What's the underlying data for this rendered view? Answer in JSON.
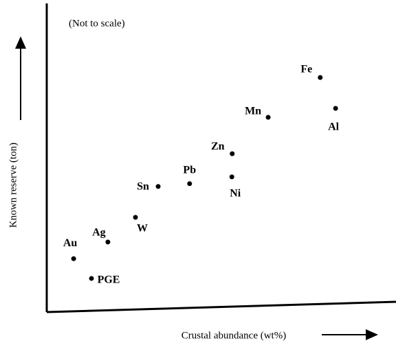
{
  "chart_data": {
    "type": "scatter",
    "annotation": "(Not to scale)",
    "xlabel": "Crustal abundance (wt%)",
    "ylabel": "Known reserve (ton)",
    "point_labels": [
      "Au",
      "PGE",
      "Ag",
      "W",
      "Sn",
      "Pb",
      "Ni",
      "Zn",
      "Mn",
      "Fe",
      "Al"
    ],
    "x": [
      7.7,
      12.8,
      17.5,
      25.4,
      31.9,
      40.9,
      53,
      53.1,
      63.4,
      78.3,
      82.7
    ],
    "values": [
      17.3,
      10.9,
      22.7,
      30.7,
      40.7,
      41.6,
      43.8,
      51.3,
      63.1,
      76,
      66
    ],
    "color": "#000000",
    "xlim": [
      0,
      100
    ],
    "ylim": [
      0,
      100
    ]
  }
}
